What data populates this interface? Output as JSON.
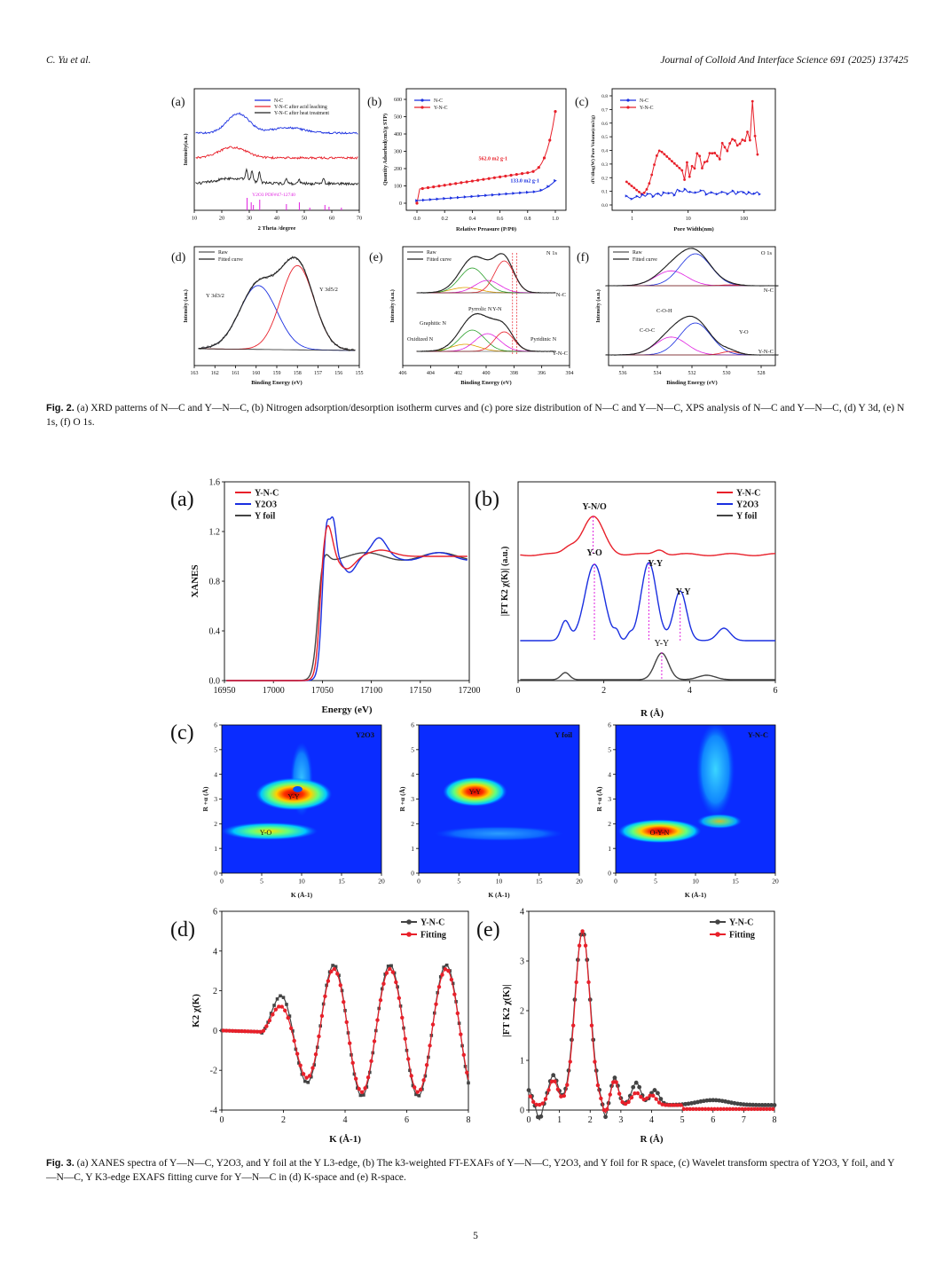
{
  "header": {
    "left": "C. Yu et al.",
    "right": "Journal of Colloid And Interface Science 691 (2025) 137425"
  },
  "page_number": "5",
  "fig2": {
    "caption_label": "Fig. 2.",
    "caption_text": "(a) XRD patterns of N—C and Y—N—C, (b) Nitrogen adsorption/desorption isotherm curves and (c) pore size distribution of N—C and Y—N—C, XPS analysis of N—C and Y—N—C, (d) Y 3d, (e) N 1s, (f) O 1s.",
    "a": {
      "label": "(a)",
      "xlabel": "2 Theta /degree",
      "ylabel": "Intensity(a.u.)",
      "xticks": [
        "10",
        "20",
        "30",
        "40",
        "50",
        "60",
        "70"
      ],
      "legend": [
        "N-C",
        "Y-N-C after acid leaching",
        "Y-N-C after heat treatment"
      ],
      "pdf_label": "Y2O3 PDF#47-12740"
    },
    "b": {
      "label": "(b)",
      "xlabel": "Relative Preasure (P/P0)",
      "ylabel": "Quantity Adsorbed(cm3/g STP)",
      "xticks": [
        "0.0",
        "0.2",
        "0.4",
        "0.6",
        "0.8",
        "1.0"
      ],
      "yticks": [
        "0",
        "100",
        "200",
        "300",
        "400",
        "500",
        "600"
      ],
      "legend": [
        "N-C",
        "Y-N-C"
      ],
      "annot_ync": "562.0 m2 g-1",
      "annot_nc": "133.0 m2 g-1"
    },
    "c": {
      "label": "(c)",
      "xlabel": "Pore Width(nm)",
      "ylabel": "dV/dlog(W) Pore Volume(cm3/g)",
      "xticks": [
        "1",
        "10",
        "100"
      ],
      "yticks": [
        "0.0",
        "0.1",
        "0.2",
        "0.3",
        "0.4",
        "0.5",
        "0.6",
        "0.7",
        "0.8"
      ],
      "legend": [
        "N-C",
        "Y-N-C"
      ]
    },
    "d": {
      "label": "(d)",
      "xlabel": "Binding Energy (eV)",
      "ylabel": "Intensity (a.u.)",
      "xticks": [
        "163",
        "162",
        "161",
        "160",
        "159",
        "158",
        "157",
        "156",
        "155"
      ],
      "legend": [
        "Raw",
        "Fitted curve"
      ],
      "peak1": "Y 3d3/2",
      "peak2": "Y 3d5/2"
    },
    "e": {
      "label": "(e)",
      "xlabel": "Binding Energy (eV)",
      "ylabel": "Intensity (a.u.)",
      "xticks": [
        "406",
        "404",
        "402",
        "400",
        "398",
        "396",
        "394"
      ],
      "legend": [
        "Raw",
        "Fitted curve"
      ],
      "title": "N 1s",
      "nc": "N-C",
      "ync": "Y-N-C",
      "annots": [
        "Graphitic N",
        "Pyrrolic N",
        "Y-N",
        "Oxidized N",
        "Pyridinic N"
      ]
    },
    "f": {
      "label": "(f)",
      "xlabel": "Binding Energy (eV)",
      "ylabel": "Intensity (a.u.)",
      "xticks": [
        "536",
        "534",
        "532",
        "530",
        "528"
      ],
      "legend": [
        "Raw",
        "Fitted curve"
      ],
      "title": "O 1s",
      "nc": "N-C",
      "ync": "Y-N-C",
      "annots": [
        "C-O-H",
        "C-O-C",
        "Y-O"
      ]
    }
  },
  "fig3": {
    "caption_label": "Fig. 3.",
    "caption_text": "(a) XANES spectra of Y—N—C, Y2O3, and Y foil at the Y L3-edge, (b) The k3-weighted FT-EXAFs of Y—N—C, Y2O3, and Y foil for R space, (c) Wavelet transform spectra of Y2O3, Y foil, and Y—N—C, Y K3-edge EXAFS fitting curve for Y—N—C in (d) K-space and (e) R-space.",
    "a": {
      "label": "(a)",
      "xlabel": "Energy (eV)",
      "ylabel": "XANES",
      "xticks": [
        "16950",
        "17000",
        "17050",
        "17100",
        "17150",
        "17200"
      ],
      "yticks": [
        "0.0",
        "0.4",
        "0.8",
        "1.2",
        "1.6"
      ],
      "legend": [
        "Y-N-C",
        "Y2O3",
        "Y foil"
      ]
    },
    "b": {
      "label": "(b)",
      "xlabel": "R (Å)",
      "ylabel": "|FT K2 χ(K)| (a.u.)",
      "xticks": [
        "0",
        "2",
        "4",
        "6"
      ],
      "legend": [
        "Y-N-C",
        "Y2O3",
        "Y foil"
      ],
      "annots": [
        "Y-N/O",
        "Y-O",
        "Y-Y",
        "Y-Y",
        "Y-Y"
      ]
    },
    "c": {
      "label": "(c)",
      "xlabel": "K (Å-1)",
      "ylabel": "R +α (Å)",
      "xticks": [
        "0",
        "5",
        "10",
        "15",
        "20"
      ],
      "yticks": [
        "0",
        "1",
        "2",
        "3",
        "4",
        "5",
        "6"
      ],
      "panels": [
        {
          "title": "Y2O3",
          "spots": [
            "Y-Y",
            "Y-O"
          ]
        },
        {
          "title": "Y foil",
          "spots": [
            "Y-Y"
          ]
        },
        {
          "title": "Y-N-C",
          "spots": [
            "O-Y-N"
          ]
        }
      ]
    },
    "d": {
      "label": "(d)",
      "xlabel": "K (Å-1)",
      "ylabel": "K2 χ(K)",
      "xticks": [
        "0",
        "2",
        "4",
        "6",
        "8"
      ],
      "yticks": [
        "-4",
        "-2",
        "0",
        "2",
        "4",
        "6"
      ],
      "legend": [
        "Y-N-C",
        "Fitting"
      ]
    },
    "e": {
      "label": "(e)",
      "xlabel": "R (Å)",
      "ylabel": "|FT K2 χ(K)|",
      "xticks": [
        "0",
        "1",
        "2",
        "3",
        "4",
        "5",
        "6",
        "7",
        "8"
      ],
      "yticks": [
        "0",
        "1",
        "2",
        "3",
        "4"
      ],
      "legend": [
        "Y-N-C",
        "Fitting"
      ]
    }
  },
  "colors": {
    "red": "#e8202a",
    "blue": "#1a2fe0",
    "black": "#222222",
    "gray": "#555555",
    "green": "#2ca02c",
    "magenta": "#e020e0",
    "purple": "#9c27b0",
    "orange": "#e0a000"
  }
}
